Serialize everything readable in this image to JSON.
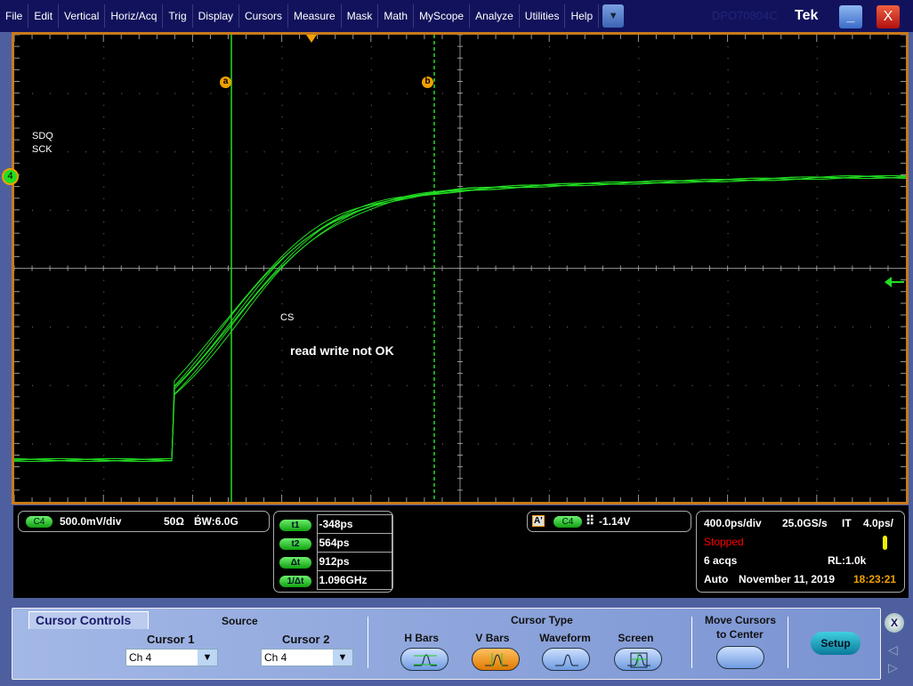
{
  "menu": [
    "File",
    "Edit",
    "Vertical",
    "Horiz/Acq",
    "Trig",
    "Display",
    "Cursors",
    "Measure",
    "Mask",
    "Math",
    "MyScope",
    "Analyze",
    "Utilities",
    "Help"
  ],
  "window": {
    "model": "DPO70804C",
    "brand": "Tek",
    "minimize": "_",
    "close": "X"
  },
  "plot": {
    "channel_marker": "4",
    "cursor_a": "a",
    "cursor_b": "b",
    "ref_label": "SDQ",
    "ref_label2": "SCK",
    "trace_label": "CS",
    "annotation": "read write not OK",
    "trace_color": "#22dd22",
    "frame_color": "#c87a1c"
  },
  "channel": {
    "badge": "C4",
    "scale": "500.0mV/div",
    "impedance": "50Ω",
    "bw": "B́W:6.0G"
  },
  "cursor_readout": [
    {
      "label": "t1",
      "value": "-348ps"
    },
    {
      "label": "t2",
      "value": "564ps"
    },
    {
      "label": "Δt",
      "value": "912ps"
    },
    {
      "label": "1/Δt",
      "value": "1.096GHz"
    }
  ],
  "trigger": {
    "mode": "A'",
    "source": "C4",
    "slope": "rising",
    "level": "-1.14V"
  },
  "acq": {
    "timebase": "400.0ps/div",
    "rate": "25.0GS/s",
    "mode": "IT",
    "res": "4.0ps/",
    "state": "Stopped",
    "acqs": "6 acqs",
    "rl": "RL:1.0k",
    "trigmode": "Auto",
    "date": "November 11, 2019",
    "time": "18:23:21"
  },
  "cursor_controls": {
    "title": "Cursor Controls",
    "source": "Source",
    "cursor1": "Cursor 1",
    "cursor2": "Cursor 2",
    "cursor1_value": "Ch 4",
    "cursor2_value": "Ch 4",
    "type_title": "Cursor Type",
    "types": [
      "H Bars",
      "V Bars",
      "Waveform",
      "Screen"
    ],
    "selected_type": "V Bars",
    "move": "Move Cursors",
    "move2": "to Center",
    "setup": "Setup",
    "close": "X"
  }
}
